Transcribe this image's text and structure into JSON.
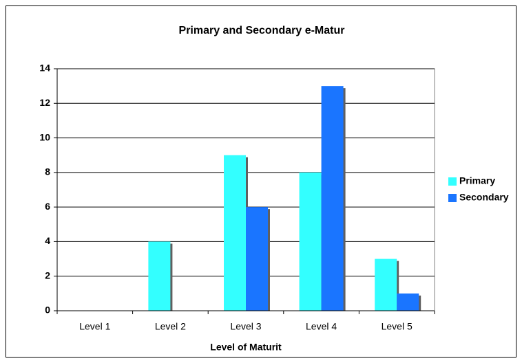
{
  "chart_data": {
    "type": "bar",
    "title": "Primary and Secondary e-Matur",
    "x_label": "Level of Maturit",
    "categories": [
      "Level 1",
      "Level 2",
      "Level 3",
      "Level 4",
      "Level 5"
    ],
    "series": [
      {
        "name": "Primary",
        "color": "#33ffff",
        "values": [
          0,
          4,
          9,
          8,
          3
        ]
      },
      {
        "name": "Secondary",
        "color": "#1a75ff",
        "values": [
          0,
          0,
          6,
          13,
          1
        ]
      }
    ],
    "ylim": [
      0,
      14
    ],
    "yticks": [
      0,
      2,
      4,
      6,
      8,
      10,
      12,
      14
    ],
    "grid": true,
    "legend": "right"
  }
}
